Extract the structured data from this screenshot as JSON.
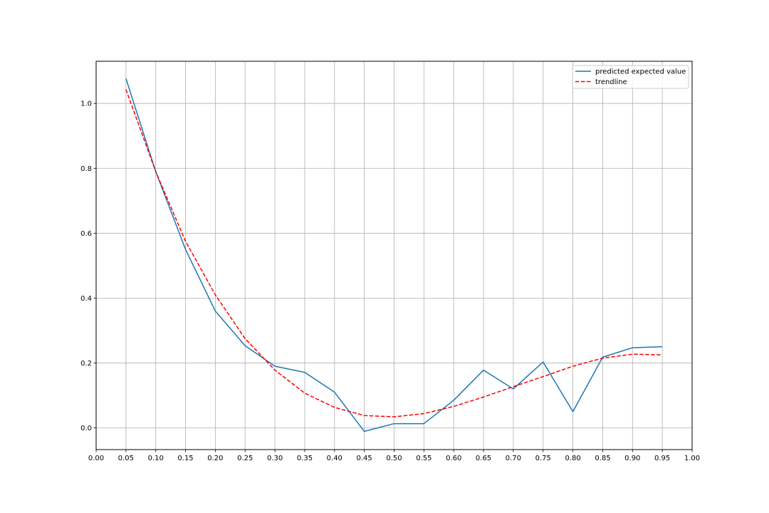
{
  "chart_data": {
    "type": "line",
    "title": "",
    "xlabel": "",
    "ylabel": "",
    "xlim": [
      0.0,
      1.0
    ],
    "ylim": [
      -0.067,
      1.13
    ],
    "grid": true,
    "legend_position": "top-right",
    "x_ticks": [
      0.0,
      0.05,
      0.1,
      0.15,
      0.2,
      0.25,
      0.3,
      0.35,
      0.4,
      0.45,
      0.5,
      0.55,
      0.6,
      0.65,
      0.7,
      0.75,
      0.8,
      0.85,
      0.9,
      0.95,
      1.0
    ],
    "x_tick_labels": [
      "0.00",
      "0.05",
      "0.10",
      "0.15",
      "0.20",
      "0.25",
      "0.30",
      "0.35",
      "0.40",
      "0.45",
      "0.50",
      "0.55",
      "0.60",
      "0.65",
      "0.70",
      "0.75",
      "0.80",
      "0.85",
      "0.90",
      "0.95",
      "1.00"
    ],
    "y_ticks": [
      0.0,
      0.2,
      0.4,
      0.6,
      0.8,
      1.0
    ],
    "y_tick_labels": [
      "0.0",
      "0.2",
      "0.4",
      "0.6",
      "0.8",
      "1.0"
    ],
    "x": [
      0.05,
      0.1,
      0.15,
      0.2,
      0.25,
      0.3,
      0.35,
      0.4,
      0.45,
      0.5,
      0.55,
      0.6,
      0.65,
      0.7,
      0.75,
      0.8,
      0.85,
      0.9,
      0.95
    ],
    "series": [
      {
        "name": "predicted expected value",
        "color": "#1f77b4",
        "style": "solid",
        "values": [
          1.077,
          0.79,
          0.55,
          0.36,
          0.253,
          0.19,
          0.171,
          0.11,
          -0.011,
          0.013,
          0.013,
          0.085,
          0.178,
          0.12,
          0.203,
          0.05,
          0.218,
          0.247,
          0.25
        ]
      },
      {
        "name": "trendline",
        "color": "#ff0000",
        "style": "dashed",
        "values": [
          1.043,
          0.79,
          0.575,
          0.41,
          0.275,
          0.178,
          0.107,
          0.063,
          0.038,
          0.034,
          0.044,
          0.066,
          0.095,
          0.127,
          0.158,
          0.19,
          0.215,
          0.227,
          0.225
        ]
      }
    ]
  }
}
